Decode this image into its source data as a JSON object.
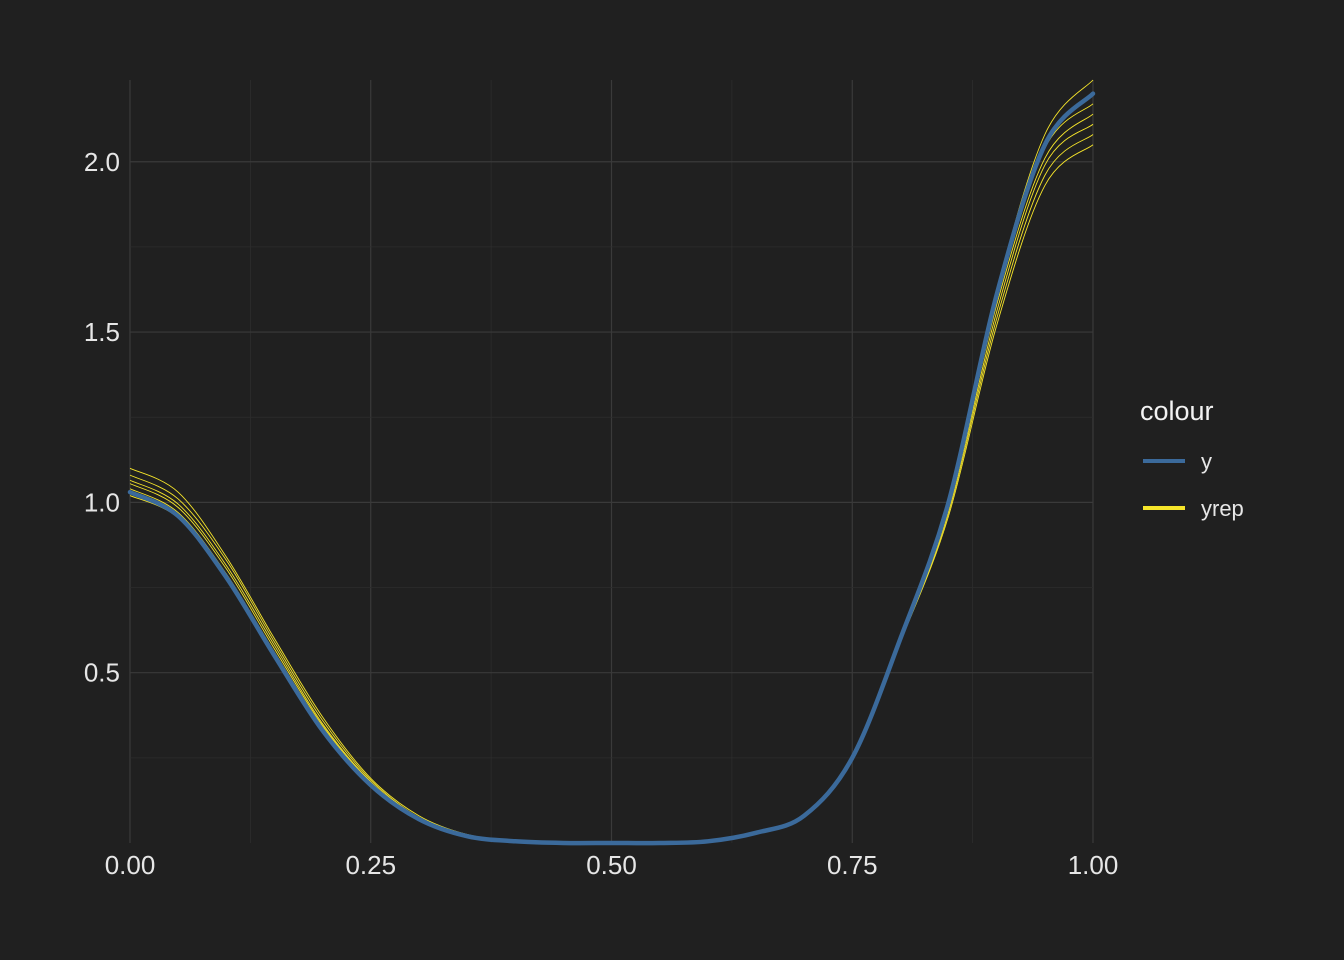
{
  "chart_data": {
    "type": "line",
    "xlim": [
      0,
      1
    ],
    "ylim": [
      0,
      2.24
    ],
    "x_ticks": [
      0,
      0.25,
      0.5,
      0.75,
      1
    ],
    "x_tick_labels": [
      "0.00",
      "0.25",
      "0.50",
      "0.75",
      "1.00"
    ],
    "y_ticks": [
      0.5,
      1.0,
      1.5,
      2.0
    ],
    "y_tick_labels": [
      "0.5",
      "1.0",
      "1.5",
      "2.0"
    ],
    "grid": true,
    "legend": {
      "title": "colour",
      "placement": "right",
      "entries": [
        {
          "label": "y",
          "color": "#3b6a9b"
        },
        {
          "label": "yrep",
          "color": "#f6e52a"
        }
      ]
    },
    "series": [
      {
        "name": "y",
        "color": "#3b6a9b",
        "x": [
          0,
          0.05,
          0.1,
          0.15,
          0.2,
          0.25,
          0.3,
          0.35,
          0.4,
          0.45,
          0.5,
          0.55,
          0.6,
          0.65,
          0.7,
          0.75,
          0.8,
          0.85,
          0.9,
          0.95,
          1.0
        ],
        "values": [
          1.03,
          0.96,
          0.78,
          0.55,
          0.33,
          0.17,
          0.07,
          0.02,
          0.005,
          0.0,
          0.0,
          0.0,
          0.005,
          0.03,
          0.08,
          0.25,
          0.6,
          1.0,
          1.61,
          2.05,
          2.2
        ]
      }
    ],
    "yrep_series": [
      {
        "color": "#f6e52a",
        "x": [
          0,
          0.05,
          0.1,
          0.15,
          0.2,
          0.25,
          0.3,
          0.35,
          0.4,
          0.45,
          0.5,
          0.55,
          0.6,
          0.65,
          0.7,
          0.75,
          0.8,
          0.85,
          0.9,
          0.95,
          1.0
        ],
        "values": [
          1.1,
          1.03,
          0.84,
          0.6,
          0.37,
          0.19,
          0.08,
          0.025,
          0.006,
          0.0,
          0.0,
          0.0,
          0.005,
          0.03,
          0.08,
          0.25,
          0.6,
          1.0,
          1.62,
          2.08,
          2.24
        ]
      },
      {
        "color": "#f6e52a",
        "x": [
          0,
          0.05,
          0.1,
          0.15,
          0.2,
          0.25,
          0.3,
          0.35,
          0.4,
          0.45,
          0.5,
          0.55,
          0.6,
          0.65,
          0.7,
          0.75,
          0.8,
          0.85,
          0.9,
          0.95,
          1.0
        ],
        "values": [
          1.08,
          1.01,
          0.83,
          0.59,
          0.36,
          0.185,
          0.075,
          0.023,
          0.006,
          0.0,
          0.0,
          0.0,
          0.005,
          0.03,
          0.08,
          0.25,
          0.6,
          1.0,
          1.6,
          2.04,
          2.17
        ]
      },
      {
        "color": "#f6e52a",
        "x": [
          0,
          0.05,
          0.1,
          0.15,
          0.2,
          0.25,
          0.3,
          0.35,
          0.4,
          0.45,
          0.5,
          0.55,
          0.6,
          0.65,
          0.7,
          0.75,
          0.8,
          0.85,
          0.9,
          0.95,
          1.0
        ],
        "values": [
          1.065,
          0.995,
          0.815,
          0.58,
          0.35,
          0.18,
          0.073,
          0.022,
          0.005,
          0.0,
          0.0,
          0.0,
          0.005,
          0.03,
          0.08,
          0.25,
          0.6,
          0.99,
          1.58,
          2.01,
          2.14
        ]
      },
      {
        "color": "#f6e52a",
        "x": [
          0,
          0.05,
          0.1,
          0.15,
          0.2,
          0.25,
          0.3,
          0.35,
          0.4,
          0.45,
          0.5,
          0.55,
          0.6,
          0.65,
          0.7,
          0.75,
          0.8,
          0.85,
          0.9,
          0.95,
          1.0
        ],
        "values": [
          1.055,
          0.985,
          0.805,
          0.57,
          0.345,
          0.177,
          0.072,
          0.021,
          0.005,
          0.0,
          0.0,
          0.0,
          0.005,
          0.03,
          0.08,
          0.25,
          0.6,
          0.98,
          1.56,
          1.99,
          2.11
        ]
      },
      {
        "color": "#f6e52a",
        "x": [
          0,
          0.05,
          0.1,
          0.15,
          0.2,
          0.25,
          0.3,
          0.35,
          0.4,
          0.45,
          0.5,
          0.55,
          0.6,
          0.65,
          0.7,
          0.75,
          0.8,
          0.85,
          0.9,
          0.95,
          1.0
        ],
        "values": [
          1.04,
          0.97,
          0.79,
          0.56,
          0.34,
          0.173,
          0.07,
          0.02,
          0.005,
          0.0,
          0.0,
          0.0,
          0.005,
          0.03,
          0.08,
          0.25,
          0.59,
          0.97,
          1.54,
          1.96,
          2.08
        ]
      },
      {
        "color": "#f6e52a",
        "x": [
          0,
          0.05,
          0.1,
          0.15,
          0.2,
          0.25,
          0.3,
          0.35,
          0.4,
          0.45,
          0.5,
          0.55,
          0.6,
          0.65,
          0.7,
          0.75,
          0.8,
          0.85,
          0.9,
          0.95,
          1.0
        ],
        "values": [
          1.02,
          0.955,
          0.78,
          0.55,
          0.33,
          0.168,
          0.068,
          0.02,
          0.005,
          0.0,
          0.0,
          0.0,
          0.005,
          0.03,
          0.08,
          0.25,
          0.59,
          0.96,
          1.52,
          1.93,
          2.05
        ]
      }
    ]
  }
}
